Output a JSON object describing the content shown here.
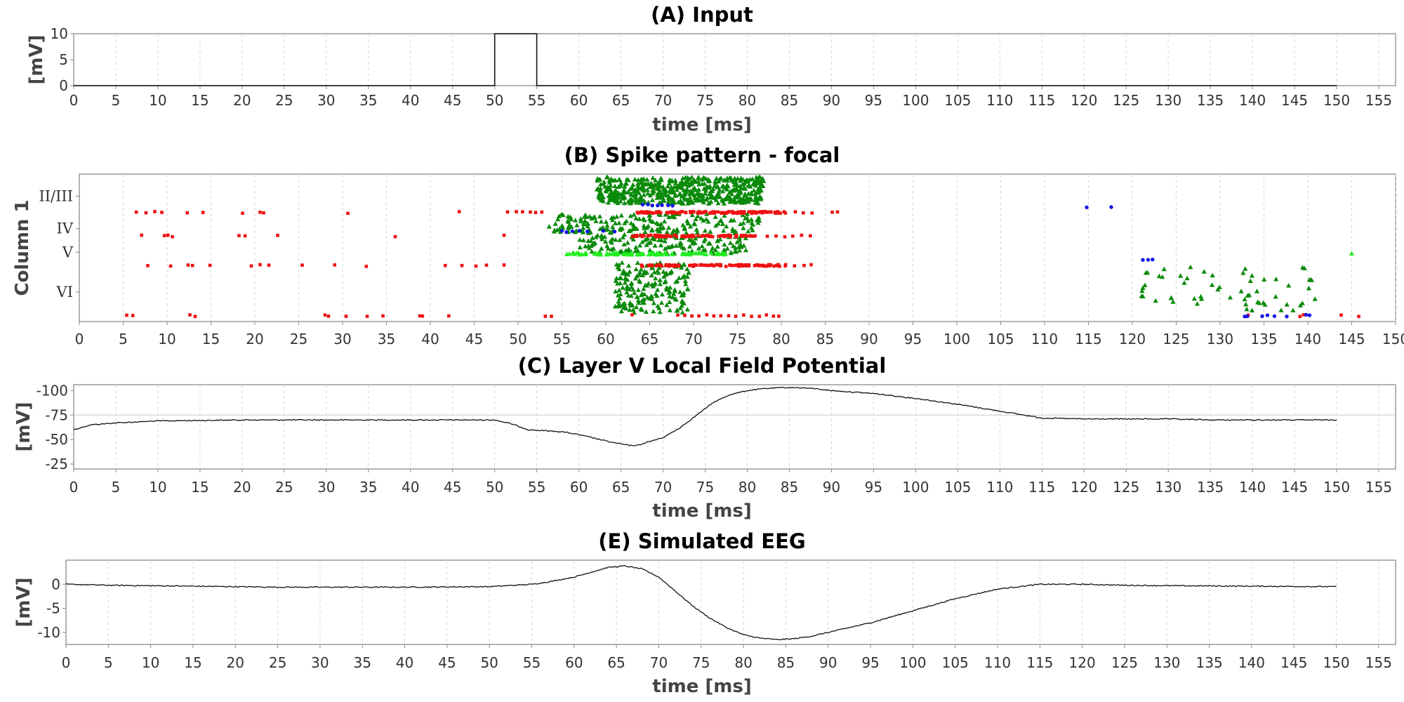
{
  "chart_data": [
    {
      "id": "A",
      "type": "line",
      "title": "(A) Input",
      "xlabel": "time [ms]",
      "ylabel": "[mV]",
      "xlim": [
        0,
        157
      ],
      "ylim": [
        0,
        10
      ],
      "xticks": [
        0,
        5,
        10,
        15,
        20,
        25,
        30,
        35,
        40,
        45,
        50,
        55,
        60,
        65,
        70,
        75,
        80,
        85,
        90,
        95,
        100,
        105,
        110,
        115,
        120,
        125,
        130,
        135,
        140,
        145,
        150,
        155
      ],
      "yticks": [
        0,
        5,
        10
      ],
      "grid": true,
      "series": [
        {
          "x": [
            0,
            50,
            50,
            55,
            55,
            150
          ],
          "y": [
            0,
            0,
            10,
            10,
            0,
            0
          ]
        }
      ]
    },
    {
      "id": "B",
      "type": "scatter",
      "title": "(B) Spike pattern - focal",
      "ylabel": "Column 1",
      "xlim": [
        0,
        150
      ],
      "xticks": [
        0,
        5,
        10,
        15,
        20,
        25,
        30,
        35,
        40,
        45,
        50,
        55,
        60,
        65,
        70,
        75,
        80,
        85,
        90,
        95,
        100,
        105,
        110,
        115,
        120,
        125,
        130,
        135,
        140,
        145,
        150
      ],
      "ycategories": [
        "II/III",
        "IV",
        "V",
        "VI"
      ],
      "grid": true,
      "colors": {
        "excitatory": "#0a8a0a",
        "bright": "#22ee22",
        "inhibitory": "#ee1111",
        "interneuron": "#1414e6"
      },
      "rows": [
        {
          "y": 0.96,
          "color": "#ee1111",
          "x": [
            5.4,
            6.1,
            12.6,
            13.2,
            28.0,
            28.4,
            30.4,
            32.8,
            34.6,
            38.8,
            39.1,
            42.1,
            53.1,
            53.8,
            63.0,
            68.2,
            69.0,
            69.8,
            70.6,
            71.5,
            72.3,
            73.1,
            74.0,
            74.8,
            75.7,
            76.6,
            77.5,
            78.3,
            79.1,
            79.7,
            133.2,
            139.1,
            139.5,
            143.8,
            145.8
          ]
        },
        {
          "y": 0.62,
          "color": "#ee1111",
          "x": [
            7.8,
            10.4,
            12.4,
            12.9,
            14.9,
            19.6,
            20.6,
            21.6,
            25.4,
            29.1,
            32.7,
            41.7,
            43.6,
            45.2,
            46.4,
            48.4
          ]
        },
        {
          "y": 0.42,
          "color": "#ee1111",
          "x": [
            7.1,
            9.7,
            10.1,
            10.6,
            18.2,
            18.9,
            22.6,
            36.0,
            48.4
          ]
        },
        {
          "y": 0.26,
          "color": "#ee1111",
          "x": [
            6.5,
            7.6,
            8.6,
            9.4,
            12.3,
            14.1,
            18.6,
            20.6,
            21.0,
            30.6,
            43.3,
            48.8,
            49.8,
            50.5,
            51.4,
            52.0,
            52.7
          ]
        },
        {
          "y": 0.62,
          "color": "#ee1111",
          "range": [
            64.0,
            80.5
          ],
          "count": 100,
          "extra": [
            81.5,
            82.6,
            83.4
          ]
        },
        {
          "y": 0.42,
          "color": "#ee1111",
          "range": [
            63.0,
            77.5
          ],
          "count": 90,
          "extra": [
            78.4,
            79.4,
            80.4,
            81.3,
            82.3,
            83.3
          ]
        },
        {
          "y": 0.26,
          "color": "#ee1111",
          "range": [
            63.5,
            80.5
          ],
          "count": 120,
          "extra": [
            81.6,
            82.5,
            83.5,
            85.8,
            86.4
          ]
        },
        {
          "y": 0.21,
          "color": "#1414e6",
          "x": [
            64.2,
            64.8,
            65.3,
            65.9,
            66.4,
            67.1,
            67.6
          ]
        },
        {
          "y": 0.39,
          "color": "#1414e6",
          "x": [
            55.0,
            55.5,
            56.2,
            57.0,
            57.9,
            59.7,
            61.0
          ]
        },
        {
          "y": 0.22,
          "color": "#1414e6",
          "x": [
            114.8,
            117.6
          ]
        },
        {
          "y": 0.58,
          "color": "#1414e6",
          "x": [
            121.2,
            121.8,
            122.3
          ]
        },
        {
          "y": 0.96,
          "color": "#1414e6",
          "x": [
            132.8,
            133.1,
            134.8,
            135.4,
            136.2,
            137.6,
            139.8,
            140.2
          ]
        },
        {
          "y": 0.54,
          "color": "#22ee22",
          "range": [
            55.5,
            74.0
          ],
          "count": 90,
          "extra": [
            145.0
          ]
        }
      ],
      "clouds": [
        {
          "color": "#0a8a0a",
          "xrange": [
            59.0,
            78.0
          ],
          "yrange": [
            0.02,
            0.2
          ],
          "count": 520
        },
        {
          "color": "#0a8a0a",
          "xrange": [
            53.5,
            78.0
          ],
          "yrange": [
            0.27,
            0.4
          ],
          "count": 190
        },
        {
          "color": "#0a8a0a",
          "xrange": [
            57.0,
            76.0
          ],
          "yrange": [
            0.41,
            0.54
          ],
          "count": 160
        },
        {
          "color": "#0a8a0a",
          "xrange": [
            61.0,
            69.5
          ],
          "yrange": [
            0.6,
            0.94
          ],
          "count": 190
        },
        {
          "color": "#0a8a0a",
          "xrange": [
            121.0,
            141.0
          ],
          "yrange": [
            0.62,
            0.94
          ],
          "count": 60
        }
      ]
    },
    {
      "id": "C",
      "type": "line",
      "title": "(C) Layer V Local Field Potential",
      "xlabel": "time [ms]",
      "ylabel": "[mV]",
      "xlim": [
        0,
        157
      ],
      "ylim": [
        -106,
        -20
      ],
      "yinverted": true,
      "yticks": [
        -100,
        -75,
        -50,
        -25
      ],
      "reference_line": -75,
      "xticks": [
        0,
        5,
        10,
        15,
        20,
        25,
        30,
        35,
        40,
        45,
        50,
        55,
        60,
        65,
        70,
        75,
        80,
        85,
        90,
        95,
        100,
        105,
        110,
        115,
        120,
        125,
        130,
        135,
        140,
        145,
        150,
        155
      ],
      "grid": true,
      "series": [
        {
          "x": [
            0,
            2,
            5,
            10,
            20,
            30,
            40,
            45,
            50,
            52,
            54,
            56,
            58,
            60,
            62,
            64,
            66,
            67,
            68,
            70,
            72,
            74,
            76,
            78,
            80,
            82,
            84,
            86,
            88,
            90,
            95,
            100,
            105,
            110,
            115,
            120,
            125,
            130,
            135,
            140,
            145,
            150
          ],
          "y": [
            -60,
            -65,
            -67,
            -69,
            -70,
            -70,
            -70,
            -70,
            -70,
            -66,
            -60,
            -59,
            -58,
            -55,
            -51,
            -47,
            -44,
            -44,
            -47,
            -52,
            -62,
            -75,
            -88,
            -96,
            -100,
            -102,
            -103,
            -103,
            -102,
            -100,
            -97,
            -92,
            -86,
            -79,
            -72,
            -71,
            -71,
            -71,
            -70,
            -70,
            -70,
            -70
          ]
        }
      ]
    },
    {
      "id": "E",
      "type": "line",
      "title": "(E) Simulated EEG",
      "xlabel": "time [ms]",
      "ylabel": "[mV]",
      "xlim": [
        0,
        157
      ],
      "ylim": [
        -12.5,
        5
      ],
      "yticks": [
        0,
        -5,
        -10
      ],
      "xticks": [
        0,
        5,
        10,
        15,
        20,
        25,
        30,
        35,
        40,
        45,
        50,
        55,
        60,
        65,
        70,
        75,
        80,
        85,
        90,
        95,
        100,
        105,
        110,
        115,
        120,
        125,
        130,
        135,
        140,
        145,
        150,
        155
      ],
      "grid": true,
      "series": [
        {
          "x": [
            0,
            5,
            10,
            15,
            20,
            25,
            30,
            40,
            50,
            52,
            55,
            57,
            60,
            62,
            64,
            66,
            68,
            70,
            72,
            74,
            76,
            78,
            80,
            82,
            84,
            86,
            88,
            90,
            92,
            95,
            100,
            105,
            110,
            115,
            120,
            125,
            130,
            140,
            150
          ],
          "y": [
            0,
            -0.2,
            -0.3,
            -0.4,
            -0.5,
            -0.6,
            -0.6,
            -0.6,
            -0.5,
            -0.3,
            0,
            0.5,
            1.5,
            2.5,
            3.5,
            3.8,
            3.2,
            1.5,
            -1.5,
            -4.5,
            -7,
            -9,
            -10.5,
            -11.2,
            -11.5,
            -11.3,
            -10.8,
            -10,
            -9.2,
            -8,
            -5.5,
            -3,
            -1,
            0,
            0,
            -0.2,
            -0.3,
            -0.4,
            -0.5
          ]
        }
      ]
    }
  ]
}
